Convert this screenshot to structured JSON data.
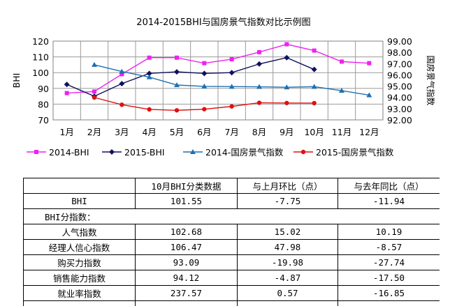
{
  "chart_data": {
    "type": "line",
    "title": "2014-2015BHI与国房景气指数对比示例图",
    "categories": [
      "1月",
      "2月",
      "3月",
      "4月",
      "5月",
      "6月",
      "7月",
      "8月",
      "9月",
      "10月",
      "11月",
      "12月"
    ],
    "y_left": {
      "label": "BHI",
      "min": 70,
      "max": 120,
      "ticks": [
        70,
        80,
        90,
        100,
        110,
        120
      ]
    },
    "y_right": {
      "label": "国房景气指数",
      "min": 92.0,
      "max": 99.0,
      "ticks": [
        "92.00",
        "93.00",
        "94.00",
        "95.00",
        "96.00",
        "97.00",
        "98.00",
        "99.00"
      ]
    },
    "grid": true,
    "legend_position": "bottom",
    "series": [
      {
        "name": "2014-BHI",
        "axis": "left",
        "color": "#ee22ee",
        "marker": "square",
        "values": [
          87,
          88,
          99,
          109.5,
          109.5,
          106,
          108.5,
          113,
          118,
          114,
          107,
          106
        ]
      },
      {
        "name": "2015-BHI",
        "axis": "left",
        "color": "#101060",
        "marker": "diamond",
        "values": [
          92.5,
          85,
          93,
          99.5,
          100.5,
          99.5,
          100,
          105.5,
          109.5,
          102,
          null,
          null
        ]
      },
      {
        "name": "2014-国房景气指数",
        "axis": "right",
        "color": "#1f6fb2",
        "marker": "triangle",
        "values": [
          null,
          96.9,
          96.3,
          95.8,
          95.1,
          94.98,
          94.96,
          94.94,
          94.9,
          94.95,
          94.6,
          94.2
        ]
      },
      {
        "name": "2015-国房景气指数",
        "axis": "right",
        "color": "#e01010",
        "marker": "circle",
        "values": [
          null,
          93.99,
          93.35,
          92.93,
          92.85,
          92.95,
          93.2,
          93.52,
          93.5,
          93.49,
          null,
          null
        ]
      }
    ]
  },
  "table": {
    "header": [
      "",
      "10月BHI分类数据",
      "与上月环比（点）",
      "与去年同比（点）"
    ],
    "rows": [
      {
        "label": "BHI",
        "values": [
          "101.55",
          "-7.75",
          "-11.94"
        ]
      },
      {
        "label": "BHI分指数：",
        "section": true
      },
      {
        "label": "人气指数",
        "values": [
          "102.68",
          "15.02",
          "10.19"
        ]
      },
      {
        "label": "经理人信心指数",
        "values": [
          "106.47",
          "47.98",
          "-8.57"
        ]
      },
      {
        "label": "购买力指数",
        "values": [
          "93.09",
          "-19.98",
          "-27.74"
        ]
      },
      {
        "label": "销售能力指数",
        "values": [
          "94.12",
          "-4.87",
          "-17.50"
        ]
      },
      {
        "label": "就业率指数",
        "values": [
          "237.57",
          "0.57",
          "-16.85"
        ]
      },
      {
        "label": "",
        "values": [
          "",
          "",
          ""
        ]
      }
    ]
  }
}
